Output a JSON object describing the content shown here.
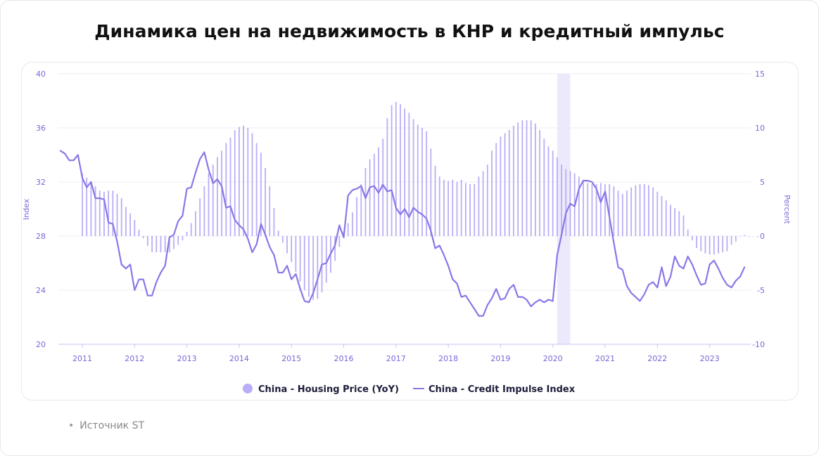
{
  "title": "Динамика цен на недвижимость в КНР и кредитный импульс",
  "source": "Источник ST",
  "colors": {
    "bar": "#b9aef5",
    "line": "#8c76e8",
    "axis_text": "#7a68d8",
    "grid": "#ececf6",
    "highlight": "#ece9fc"
  },
  "chart_data": {
    "type": "bar+line",
    "title": "Динамика цен на недвижимость в КНР и кредитный импульс",
    "ylabel_left": "Index",
    "ylabel_right": "Percent",
    "ylim_left": [
      20,
      40
    ],
    "ylim_right": [
      -10,
      15
    ],
    "yticks_left": [
      "20",
      "24",
      "28",
      "32",
      "36",
      "40"
    ],
    "yticks_right": [
      "-10",
      "-5",
      "0",
      "5",
      "10",
      "15"
    ],
    "xticks": [
      "2011",
      "2012",
      "2013",
      "2014",
      "2015",
      "2016",
      "2017",
      "2018",
      "2019",
      "2020",
      "2021",
      "2022",
      "2023"
    ],
    "grid": true,
    "legend_position": "bottom",
    "legend": [
      "China - Housing Price (YoY)",
      "China - Credit Impulse Index"
    ],
    "highlight_range": [
      "2020-02",
      "2020-05"
    ],
    "bar_series": {
      "name": "China - Housing Price (YoY)",
      "axis": "right",
      "start": "2011-01",
      "values": [
        5.8,
        5.4,
        5.0,
        4.6,
        4.2,
        4.1,
        4.2,
        4.2,
        3.9,
        3.5,
        2.7,
        2.1,
        1.5,
        0.6,
        -0.2,
        -0.9,
        -1.5,
        -1.5,
        -1.5,
        -1.5,
        -1.5,
        -1.2,
        -0.8,
        -0.4,
        0.4,
        1.2,
        2.3,
        3.5,
        4.6,
        5.8,
        6.6,
        7.3,
        7.9,
        8.6,
        9.1,
        9.8,
        10.1,
        10.2,
        10.0,
        9.5,
        8.6,
        7.7,
        6.3,
        4.6,
        2.6,
        0.5,
        -0.6,
        -1.6,
        -2.4,
        -3.3,
        -4.2,
        -5.0,
        -5.6,
        -5.9,
        -5.8,
        -5.2,
        -4.3,
        -3.4,
        -2.3,
        -1.0,
        0.4,
        1.2,
        2.2,
        3.6,
        4.8,
        6.3,
        7.1,
        7.6,
        8.2,
        9.0,
        10.9,
        12.1,
        12.4,
        12.2,
        11.8,
        11.4,
        10.8,
        10.3,
        10.0,
        9.7,
        8.1,
        6.5,
        5.5,
        5.2,
        5.1,
        5.2,
        5.0,
        5.2,
        4.9,
        4.8,
        4.8,
        5.5,
        6.0,
        6.6,
        7.9,
        8.6,
        9.2,
        9.5,
        9.8,
        10.2,
        10.5,
        10.7,
        10.7,
        10.7,
        10.4,
        9.8,
        9.0,
        8.3,
        7.9,
        7.3,
        6.6,
        6.2,
        6.0,
        5.8,
        5.5,
        5.1,
        4.9,
        4.8,
        4.8,
        4.9,
        4.8,
        4.8,
        4.6,
        4.2,
        3.9,
        4.2,
        4.5,
        4.7,
        4.8,
        4.8,
        4.7,
        4.5,
        4.1,
        3.7,
        3.3,
        2.9,
        2.6,
        2.3,
        1.9,
        0.6,
        -0.4,
        -1.1,
        -1.4,
        -1.6,
        -1.7,
        -1.7,
        -1.6,
        -1.5,
        -1.4,
        -0.8,
        -0.5,
        0.0,
        0.1,
        0.0,
        0.0,
        -0.1
      ]
    },
    "line_series": {
      "name": "China - Credit Impulse Index",
      "axis": "left",
      "start": "2010-08",
      "values": [
        34.3,
        34.1,
        33.6,
        33.6,
        34.0,
        32.3,
        31.6,
        32.0,
        30.8,
        30.8,
        30.7,
        29.0,
        28.9,
        27.6,
        25.9,
        25.6,
        25.9,
        24.0,
        24.8,
        24.8,
        23.6,
        23.6,
        24.6,
        25.3,
        25.8,
        27.9,
        28.1,
        29.1,
        29.5,
        31.5,
        31.6,
        32.7,
        33.7,
        34.2,
        32.9,
        31.9,
        32.2,
        31.7,
        30.1,
        30.2,
        29.2,
        28.8,
        28.5,
        27.8,
        26.8,
        27.4,
        28.9,
        28.1,
        27.2,
        26.6,
        25.3,
        25.3,
        25.8,
        24.8,
        25.2,
        24.1,
        23.2,
        23.1,
        23.8,
        24.8,
        25.9,
        26.0,
        26.7,
        27.3,
        28.8,
        27.9,
        31.0,
        31.4,
        31.5,
        31.7,
        30.8,
        31.6,
        31.7,
        31.2,
        31.8,
        31.3,
        31.4,
        30.1,
        29.6,
        30.0,
        29.4,
        30.1,
        29.8,
        29.6,
        29.3,
        28.4,
        27.1,
        27.3,
        26.6,
        25.8,
        24.8,
        24.5,
        23.5,
        23.6,
        23.1,
        22.6,
        22.1,
        22.1,
        22.9,
        23.4,
        24.1,
        23.3,
        23.4,
        24.1,
        24.4,
        23.5,
        23.5,
        23.3,
        22.8,
        23.1,
        23.3,
        23.1,
        23.3,
        23.2,
        26.6,
        28.1,
        29.7,
        30.4,
        30.2,
        31.5,
        32.1,
        32.1,
        32.0,
        31.5,
        30.5,
        31.3,
        29.4,
        27.5,
        25.7,
        25.5,
        24.3,
        23.8,
        23.5,
        23.2,
        23.7,
        24.4,
        24.6,
        24.2,
        25.7,
        24.3,
        25.0,
        26.5,
        25.8,
        25.6,
        26.5,
        25.9,
        25.1,
        24.4,
        24.5,
        25.9,
        26.2,
        25.6,
        24.9,
        24.4,
        24.2,
        24.7,
        25.0,
        25.7
      ]
    }
  }
}
